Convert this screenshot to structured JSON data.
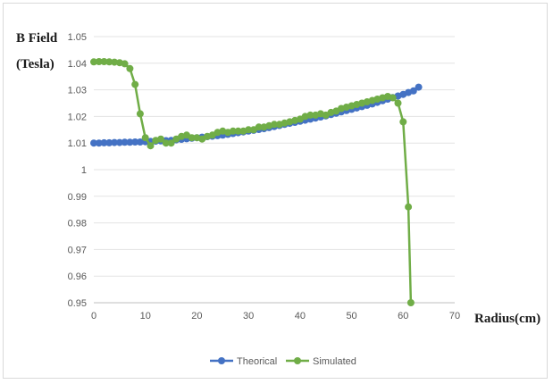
{
  "chart_data": {
    "type": "line",
    "title": "",
    "ylabel_line1": "B Field",
    "ylabel_line2": "(Tesla)",
    "xlabel": "Radius(cm)",
    "xlim": [
      0,
      70
    ],
    "ylim": [
      0.95,
      1.05
    ],
    "xticks": [
      0,
      10,
      20,
      30,
      40,
      50,
      60,
      70
    ],
    "yticks": [
      0.95,
      0.96,
      0.97,
      0.98,
      0.99,
      1,
      1.01,
      1.02,
      1.03,
      1.04,
      1.05
    ],
    "ytick_labels": [
      "0.95",
      "0.96",
      "0.97",
      "0.98",
      "0.99",
      "1",
      "1.01",
      "1.02",
      "1.03",
      "1.04",
      "1.05"
    ],
    "grid": "horizontal",
    "legend_position": "bottom",
    "series": [
      {
        "name": "Theorical",
        "color": "#4472c4",
        "x": [
          0,
          1,
          2,
          3,
          4,
          5,
          6,
          7,
          8,
          9,
          10,
          11,
          12,
          13,
          14,
          15,
          16,
          17,
          18,
          19,
          20,
          21,
          22,
          23,
          24,
          25,
          26,
          27,
          28,
          29,
          30,
          31,
          32,
          33,
          34,
          35,
          36,
          37,
          38,
          39,
          40,
          41,
          42,
          43,
          44,
          45,
          46,
          47,
          48,
          49,
          50,
          51,
          52,
          53,
          54,
          55,
          56,
          57,
          58,
          59,
          60,
          61,
          62,
          63
        ],
        "y": [
          1.01,
          1.01,
          1.0101,
          1.0101,
          1.0102,
          1.0102,
          1.0103,
          1.0103,
          1.0104,
          1.0104,
          1.0105,
          1.0106,
          1.0107,
          1.0108,
          1.0109,
          1.011,
          1.0112,
          1.0114,
          1.0116,
          1.0118,
          1.012,
          1.0122,
          1.0124,
          1.0126,
          1.0128,
          1.013,
          1.0133,
          1.0136,
          1.0139,
          1.0142,
          1.0145,
          1.0148,
          1.0151,
          1.0154,
          1.0158,
          1.0162,
          1.0166,
          1.017,
          1.0174,
          1.0178,
          1.0182,
          1.0186,
          1.019,
          1.0194,
          1.0198,
          1.0202,
          1.0207,
          1.0212,
          1.0217,
          1.0222,
          1.0227,
          1.0232,
          1.0237,
          1.0242,
          1.0247,
          1.0253,
          1.0259,
          1.0265,
          1.0271,
          1.0277,
          1.0283,
          1.029,
          1.0296,
          1.031
        ]
      },
      {
        "name": "Simulated",
        "color": "#70ad47",
        "x": [
          0,
          1,
          2,
          3,
          4,
          5,
          6,
          7,
          8,
          9,
          10,
          11,
          12,
          13,
          14,
          15,
          16,
          17,
          18,
          19,
          20,
          21,
          22,
          23,
          24,
          25,
          26,
          27,
          28,
          29,
          30,
          31,
          32,
          33,
          34,
          35,
          36,
          37,
          38,
          39,
          40,
          41,
          42,
          43,
          44,
          45,
          46,
          47,
          48,
          49,
          50,
          51,
          52,
          53,
          54,
          55,
          56,
          57,
          58,
          59,
          60,
          61,
          61.5
        ],
        "y": [
          1.0405,
          1.0406,
          1.0406,
          1.0405,
          1.0404,
          1.0402,
          1.0398,
          1.038,
          1.032,
          1.021,
          1.012,
          1.009,
          1.011,
          1.0115,
          1.01,
          1.01,
          1.0115,
          1.0125,
          1.013,
          1.012,
          1.012,
          1.0115,
          1.0125,
          1.013,
          1.014,
          1.0145,
          1.014,
          1.0145,
          1.0145,
          1.0145,
          1.015,
          1.015,
          1.016,
          1.016,
          1.0165,
          1.017,
          1.017,
          1.0175,
          1.018,
          1.0185,
          1.019,
          1.02,
          1.0205,
          1.0205,
          1.021,
          1.0205,
          1.0215,
          1.022,
          1.023,
          1.0235,
          1.024,
          1.0245,
          1.025,
          1.0255,
          1.026,
          1.0265,
          1.027,
          1.0275,
          1.027,
          1.025,
          1.018,
          0.986,
          0.95
        ]
      }
    ]
  }
}
